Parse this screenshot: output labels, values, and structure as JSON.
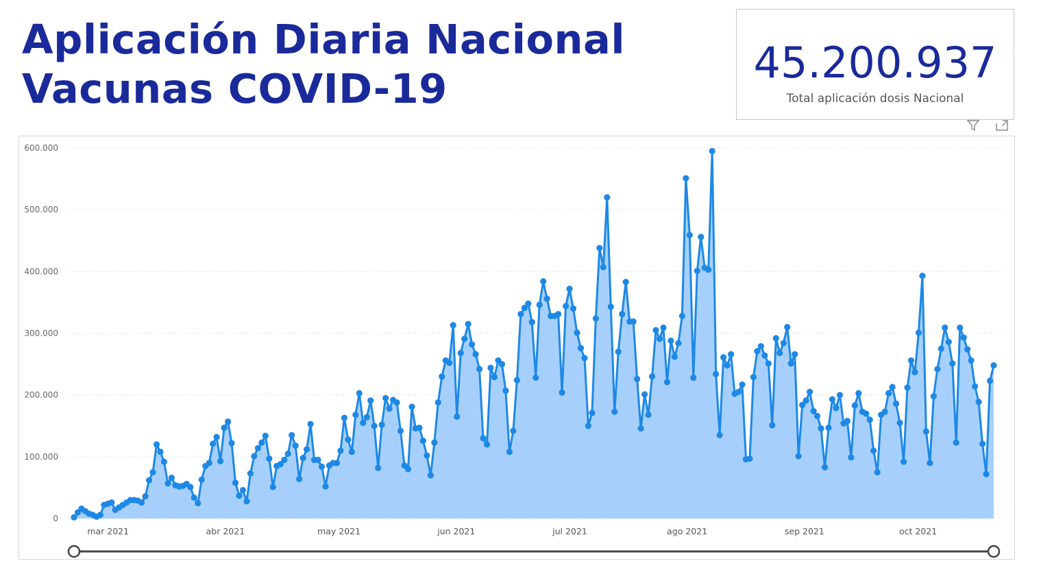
{
  "title": {
    "line1": "Aplicación Diaria Nacional",
    "line2": "Vacunas COVID-19"
  },
  "kpi": {
    "value": "45.200.937",
    "label": "Total aplicación dosis Nacional"
  },
  "icons": {
    "filter": "filter-icon",
    "focus": "focus-mode-icon"
  },
  "colors": {
    "title": "#1a2a9a",
    "line": "#1e88e5",
    "area": "#a6d0fb"
  },
  "chart_data": {
    "type": "area",
    "title": "",
    "xlabel": "",
    "ylabel": "",
    "ylim": [
      0,
      600000
    ],
    "yticks": [
      0,
      100000,
      200000,
      300000,
      400000,
      500000,
      600000
    ],
    "ytick_labels": [
      "0",
      "100.000",
      "200.000",
      "300.000",
      "400.000",
      "500.000",
      "600.000"
    ],
    "xtick_labels": [
      "mar 2021",
      "abr 2021",
      "may 2021",
      "jun 2021",
      "jul 2021",
      "ago 2021",
      "sep 2021",
      "oct 2021"
    ],
    "x_start": "2021-02-20",
    "x_end": "2021-10-21",
    "grid": true,
    "legend": "none",
    "series": [
      {
        "values": [
          2000,
          10000,
          16000,
          12000,
          8000,
          6000,
          3000,
          6000,
          22000,
          24000,
          26000,
          14000,
          18000,
          22000,
          26000,
          30000,
          30000,
          29000,
          26000,
          36000,
          62000,
          75000,
          120000,
          108000,
          92000,
          57000,
          66000,
          54000,
          52000,
          53000,
          56000,
          51000,
          34000,
          25000,
          63000,
          85000,
          90000,
          121000,
          132000,
          93000,
          147000,
          157000,
          122000,
          58000,
          37000,
          46000,
          28000,
          73000,
          101000,
          114000,
          123000,
          134000,
          97000,
          51000,
          85000,
          88000,
          95000,
          105000,
          135000,
          118000,
          64000,
          98000,
          112000,
          153000,
          95000,
          95000,
          84000,
          52000,
          86000,
          90000,
          90000,
          110000,
          163000,
          128000,
          108000,
          168000,
          203000,
          155000,
          164000,
          191000,
          150000,
          82000,
          152000,
          195000,
          178000,
          192000,
          188000,
          142000,
          86000,
          80000,
          181000,
          146000,
          147000,
          126000,
          102000,
          70000,
          123000,
          188000,
          230000,
          256000,
          252000,
          313000,
          165000,
          268000,
          291000,
          315000,
          282000,
          266000,
          242000,
          130000,
          120000,
          244000,
          229000,
          256000,
          250000,
          207000,
          108000,
          142000,
          224000,
          331000,
          341000,
          348000,
          318000,
          228000,
          346000,
          384000,
          356000,
          328000,
          328000,
          331000,
          204000,
          344000,
          372000,
          340000,
          301000,
          276000,
          260000,
          150000,
          171000,
          324000,
          438000,
          407000,
          520000,
          343000,
          173000,
          270000,
          331000,
          383000,
          319000,
          319000,
          226000,
          146000,
          201000,
          168000,
          230000,
          305000,
          291000,
          309000,
          221000,
          288000,
          262000,
          284000,
          328000,
          551000,
          459000,
          228000,
          401000,
          456000,
          406000,
          403000,
          595000,
          234000,
          135000,
          261000,
          248000,
          266000,
          202000,
          205000,
          217000,
          96000,
          97000,
          229000,
          271000,
          279000,
          264000,
          251000,
          151000,
          292000,
          268000,
          284000,
          310000,
          251000,
          266000,
          101000,
          184000,
          191000,
          205000,
          174000,
          166000,
          146000,
          83000,
          147000,
          193000,
          179000,
          200000,
          154000,
          158000,
          99000,
          183000,
          203000,
          173000,
          170000,
          160000,
          110000,
          75000,
          168000,
          173000,
          203000,
          213000,
          186000,
          155000,
          92000,
          212000,
          256000,
          237000,
          301000,
          393000,
          141000,
          90000,
          198000,
          242000,
          275000,
          309000,
          286000,
          251000,
          123000,
          309000,
          293000,
          274000,
          256000,
          214000,
          189000,
          121000,
          72000,
          223000,
          248000
        ]
      }
    ]
  }
}
